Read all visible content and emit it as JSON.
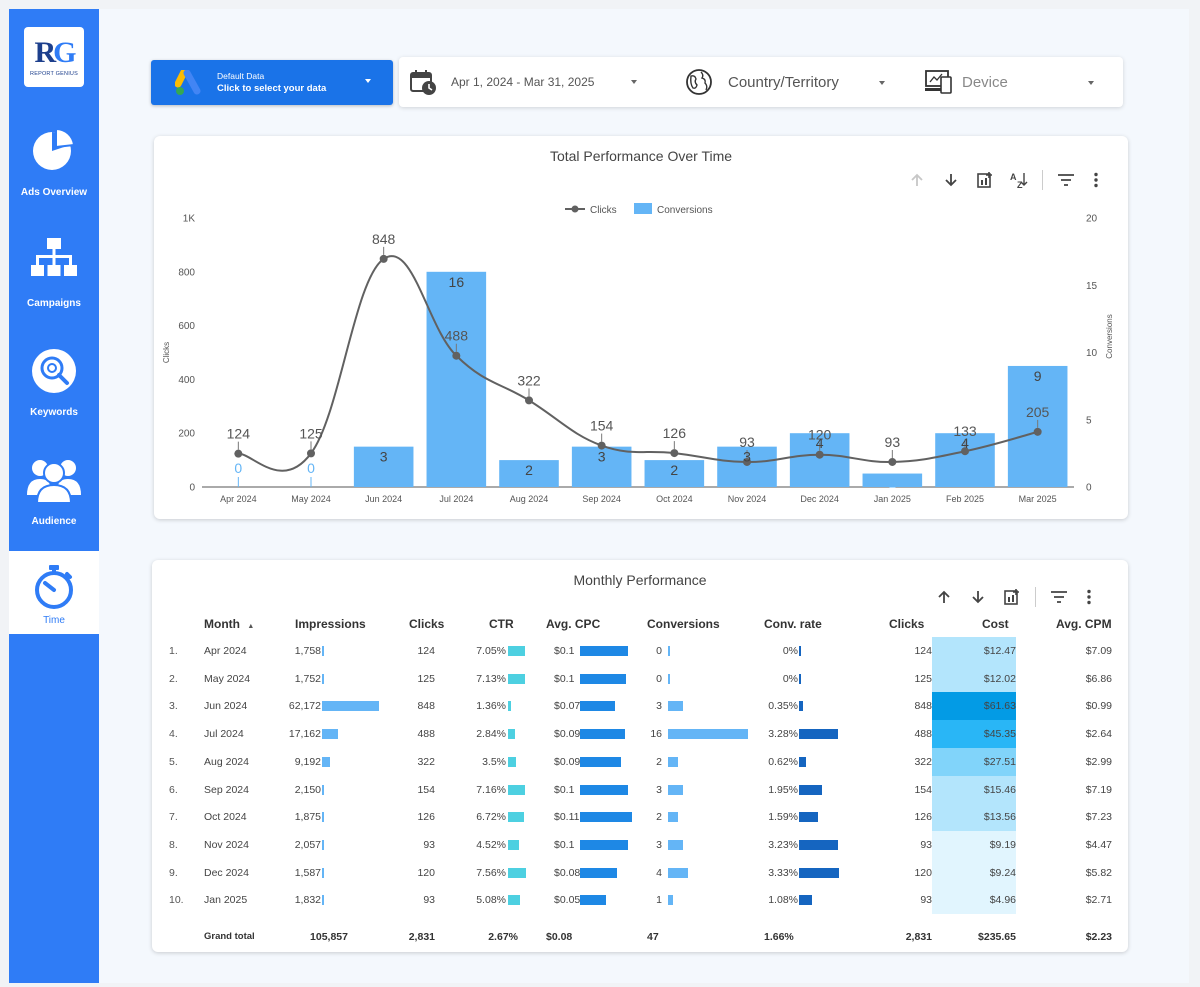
{
  "logo": {
    "mark_r": "R",
    "mark_g": "G",
    "sub": "REPORT GENIUS"
  },
  "sidebar": {
    "items": [
      {
        "label": "Ads Overview",
        "icon": "pie-chart-icon"
      },
      {
        "label": "Campaigns",
        "icon": "hierarchy-icon"
      },
      {
        "label": "Keywords",
        "icon": "keyword-search-icon"
      },
      {
        "label": "Audience",
        "icon": "audience-icon"
      },
      {
        "label": "Time",
        "icon": "stopwatch-icon",
        "active": true
      }
    ]
  },
  "filters": {
    "data_source_line1": "Default Data",
    "data_source_line2": "Click to select your data",
    "date_range": "Apr 1, 2024 - Mar 31, 2025",
    "country": "Country/Territory",
    "device": "Device"
  },
  "perf_chart": {
    "title": "Total Performance Over Time",
    "chart_data": {
      "type": "bar",
      "categories": [
        "Apr 2024",
        "May 2024",
        "Jun 2024",
        "Jul 2024",
        "Aug 2024",
        "Sep 2024",
        "Oct 2024",
        "Nov 2024",
        "Dec 2024",
        "Jan 2025",
        "Feb 2025",
        "Mar 2025"
      ],
      "series": [
        {
          "name": "Conversions",
          "type": "bar",
          "axis": "right",
          "color": "#64b5f6",
          "values": [
            0,
            0,
            3,
            16,
            2,
            3,
            2,
            3,
            4,
            1,
            4,
            9
          ]
        },
        {
          "name": "Clicks",
          "type": "line",
          "axis": "left",
          "color": "#616161",
          "values": [
            124,
            125,
            848,
            488,
            322,
            154,
            126,
            93,
            120,
            93,
            133,
            205
          ]
        }
      ],
      "ylabel": "Clicks",
      "y2label": "Conversions",
      "ylim": [
        0,
        1000
      ],
      "y2lim": [
        0,
        20
      ],
      "yticks": [
        "0",
        "200",
        "400",
        "600",
        "800",
        "1K"
      ],
      "y2ticks": [
        "0",
        "5",
        "10",
        "15",
        "20"
      ],
      "legend": "top-center"
    }
  },
  "monthly_table": {
    "title": "Monthly Performance",
    "columns": [
      "Month",
      "Impressions",
      "Clicks",
      "CTR",
      "Avg. CPC",
      "Conversions",
      "Conv. rate",
      "Clicks",
      "Cost",
      "Avg. CPM"
    ],
    "sort_indicator": "▲",
    "rows": [
      {
        "n": "1.",
        "month": "Apr 2024",
        "impr": "1,758",
        "impr_v": 1758,
        "clicks": "124",
        "ctr": "7.05%",
        "ctr_v": 7.05,
        "cpc": "$0.1",
        "cpc_v": 0.1,
        "conv": "0",
        "conv_v": 0,
        "cr": "0%",
        "cr_v": 0,
        "clicks2": "124",
        "cost": "$12.47",
        "cost_v": 12.47,
        "cpm": "$7.09"
      },
      {
        "n": "2.",
        "month": "May 2024",
        "impr": "1,752",
        "impr_v": 1752,
        "clicks": "125",
        "ctr": "7.13%",
        "ctr_v": 7.13,
        "cpc": "$0.1",
        "cpc_v": 0.096,
        "conv": "0",
        "conv_v": 0,
        "cr": "0%",
        "cr_v": 0,
        "clicks2": "125",
        "cost": "$12.02",
        "cost_v": 12.02,
        "cpm": "$6.86"
      },
      {
        "n": "3.",
        "month": "Jun 2024",
        "impr": "62,172",
        "impr_v": 62172,
        "clicks": "848",
        "ctr": "1.36%",
        "ctr_v": 1.36,
        "cpc": "$0.07",
        "cpc_v": 0.073,
        "conv": "3",
        "conv_v": 3,
        "cr": "0.35%",
        "cr_v": 0.35,
        "clicks2": "848",
        "cost": "$61.63",
        "cost_v": 61.63,
        "cpm": "$0.99"
      },
      {
        "n": "4.",
        "month": "Jul 2024",
        "impr": "17,162",
        "impr_v": 17162,
        "clicks": "488",
        "ctr": "2.84%",
        "ctr_v": 2.84,
        "cpc": "$0.09",
        "cpc_v": 0.093,
        "conv": "16",
        "conv_v": 16,
        "cr": "3.28%",
        "cr_v": 3.28,
        "clicks2": "488",
        "cost": "$45.35",
        "cost_v": 45.35,
        "cpm": "$2.64"
      },
      {
        "n": "5.",
        "month": "Aug 2024",
        "impr": "9,192",
        "impr_v": 9192,
        "clicks": "322",
        "ctr": "3.5%",
        "ctr_v": 3.5,
        "cpc": "$0.09",
        "cpc_v": 0.085,
        "conv": "2",
        "conv_v": 2,
        "cr": "0.62%",
        "cr_v": 0.62,
        "clicks2": "322",
        "cost": "$27.51",
        "cost_v": 27.51,
        "cpm": "$2.99"
      },
      {
        "n": "6.",
        "month": "Sep 2024",
        "impr": "2,150",
        "impr_v": 2150,
        "clicks": "154",
        "ctr": "7.16%",
        "ctr_v": 7.16,
        "cpc": "$0.1",
        "cpc_v": 0.1,
        "conv": "3",
        "conv_v": 3,
        "cr": "1.95%",
        "cr_v": 1.95,
        "clicks2": "154",
        "cost": "$15.46",
        "cost_v": 15.46,
        "cpm": "$7.19"
      },
      {
        "n": "7.",
        "month": "Oct 2024",
        "impr": "1,875",
        "impr_v": 1875,
        "clicks": "126",
        "ctr": "6.72%",
        "ctr_v": 6.72,
        "cpc": "$0.11",
        "cpc_v": 0.108,
        "conv": "2",
        "conv_v": 2,
        "cr": "1.59%",
        "cr_v": 1.59,
        "clicks2": "126",
        "cost": "$13.56",
        "cost_v": 13.56,
        "cpm": "$7.23"
      },
      {
        "n": "8.",
        "month": "Nov 2024",
        "impr": "2,057",
        "impr_v": 2057,
        "clicks": "93",
        "ctr": "4.52%",
        "ctr_v": 4.52,
        "cpc": "$0.1",
        "cpc_v": 0.099,
        "conv": "3",
        "conv_v": 3,
        "cr": "3.23%",
        "cr_v": 3.23,
        "clicks2": "93",
        "cost": "$9.19",
        "cost_v": 9.19,
        "cpm": "$4.47"
      },
      {
        "n": "9.",
        "month": "Dec 2024",
        "impr": "1,587",
        "impr_v": 1587,
        "clicks": "120",
        "ctr": "7.56%",
        "ctr_v": 7.56,
        "cpc": "$0.08",
        "cpc_v": 0.077,
        "conv": "4",
        "conv_v": 4,
        "cr": "3.33%",
        "cr_v": 3.33,
        "clicks2": "120",
        "cost": "$9.24",
        "cost_v": 9.24,
        "cpm": "$5.82"
      },
      {
        "n": "10.",
        "month": "Jan 2025",
        "impr": "1,832",
        "impr_v": 1832,
        "clicks": "93",
        "ctr": "5.08%",
        "ctr_v": 5.08,
        "cpc": "$0.05",
        "cpc_v": 0.053,
        "conv": "1",
        "conv_v": 1,
        "cr": "1.08%",
        "cr_v": 1.08,
        "clicks2": "93",
        "cost": "$4.96",
        "cost_v": 4.96,
        "cpm": "$2.71"
      }
    ],
    "total": {
      "label": "Grand total",
      "impr": "105,857",
      "clicks": "2,831",
      "ctr": "2.67%",
      "cpc": "$0.08",
      "conv": "47",
      "cr": "1.66%",
      "clicks2": "2,831",
      "cost": "$235.65",
      "cpm": "$2.23"
    },
    "colors": {
      "impr": "#64b5f6",
      "ctr": "#4dd0e1",
      "cpc": "#1e88e5",
      "conv": "#64b5f6",
      "cr": "#1565c0"
    }
  }
}
